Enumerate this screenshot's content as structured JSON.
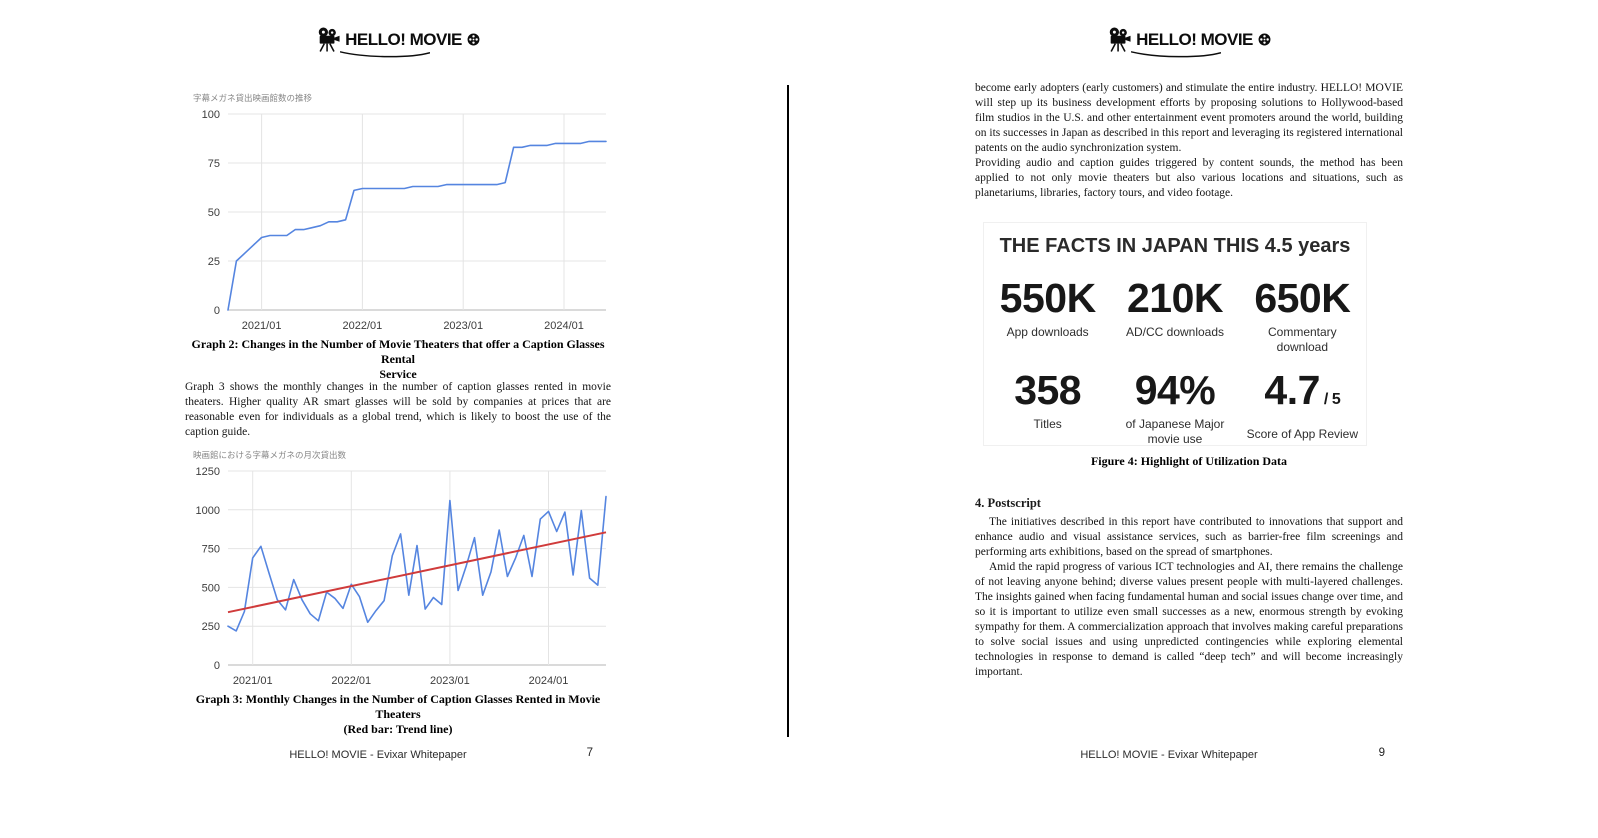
{
  "logo": {
    "text": "HELLO! MOVIE"
  },
  "left_page": {
    "graph2_caption": {
      "line1": "Graph 2: Changes in the Number of Movie Theaters that offer a Caption Glasses Rental",
      "line2": "Service"
    },
    "body_paragraph": "Graph 3 shows the monthly changes in the number of caption glasses rented in movie theaters. Higher quality AR smart glasses will be sold by companies at prices that are reasonable even for individuals as a global trend, which is likely to boost the use of the caption guide.",
    "graph3_caption": {
      "line1": "Graph 3: Monthly Changes in the Number of Caption Glasses Rented in Movie Theaters",
      "line2": "(Red bar: Trend line)"
    },
    "footer": "HELLO! MOVIE - Evixar Whitepaper",
    "page_number": "7"
  },
  "right_page": {
    "paragraph1": "become early adopters (early customers) and stimulate the entire industry. HELLO! MOVIE will step up its business development efforts by proposing solutions to Hollywood-based film studios in the U.S. and other entertainment event promoters around the world, building on its successes in Japan as described in this report and leveraging its registered international patents on the audio synchronization system.",
    "paragraph2": "Providing audio and caption guides triggered by content sounds, the method has been applied to not only movie theaters but also various locations and situations, such as planetariums, libraries, factory tours, and video footage.",
    "facts": {
      "title": "THE FACTS IN JAPAN THIS 4.5 years",
      "stats": [
        {
          "value": "550K",
          "label": "App downloads"
        },
        {
          "value": "210K",
          "label": "AD/CC downloads"
        },
        {
          "value": "650K",
          "label": "Commentary\ndownload"
        },
        {
          "value": "358",
          "label": "Titles"
        },
        {
          "value": "94%",
          "label": "of Japanese Major\nmovie use"
        },
        {
          "value": "4.7",
          "suffix": "/ 5",
          "label": "Score of App Review"
        }
      ]
    },
    "figure_caption": "Figure 4: Highlight of Utilization Data",
    "postscript": {
      "heading": "4. Postscript",
      "paragraph1": "The initiatives described in this report have contributed to innovations that support and enhance audio and visual assistance services, such as barrier-free film screenings and performing arts exhibitions, based on the spread of smartphones.",
      "paragraph2": "Amid the rapid progress of various ICT technologies and AI, there remains the challenge of not leaving anyone behind; diverse values present people with multi-layered challenges. The insights gained when facing fundamental human and social issues change over time, and so it is important to utilize even small successes as a new, enormous strength by evoking sympathy for them. A commercialization approach that involves making careful preparations to solve social issues and using unpredicted contingencies while exploring elemental technologies in response to demand is called “deep tech” and will become increasingly important."
    },
    "footer": "HELLO! MOVIE - Evixar Whitepaper",
    "page_number": "9"
  },
  "chart_data": [
    {
      "type": "line",
      "title": "字幕メガネ貸出映画館数の推移",
      "start_month": "2020/09",
      "x_tick_labels": [
        "2021/01",
        "2022/01",
        "2023/01",
        "2024/01"
      ],
      "y_ticks": [
        0,
        25,
        50,
        75,
        100
      ],
      "ylim": [
        0,
        100
      ],
      "grid": true,
      "legend": "none",
      "series": [
        {
          "name": "theaters-offering-caption-glasses",
          "color": "#5585e0",
          "values": [
            0,
            25,
            29,
            33,
            37,
            38,
            38,
            38,
            41,
            41,
            42,
            43,
            45,
            45,
            46,
            61,
            62,
            62,
            62,
            62,
            62,
            62,
            63,
            63,
            63,
            63,
            64,
            64,
            64,
            64,
            64,
            64,
            64,
            65,
            83,
            83,
            84,
            84,
            84,
            85,
            85,
            85,
            85,
            86,
            86,
            86
          ]
        }
      ]
    },
    {
      "type": "line",
      "title": "映画館における字幕メガネの月次貸出数",
      "start_month": "2020/10",
      "x_tick_labels": [
        "2021/01",
        "2022/01",
        "2023/01",
        "2024/01"
      ],
      "y_ticks": [
        0,
        250,
        500,
        750,
        1000,
        1250
      ],
      "ylim": [
        0,
        1250
      ],
      "grid": true,
      "legend": "none",
      "series": [
        {
          "name": "monthly-caption-glasses-rentals",
          "color": "#5585e0",
          "values": [
            250,
            220,
            345,
            690,
            765,
            590,
            420,
            355,
            550,
            420,
            330,
            285,
            470,
            430,
            365,
            520,
            440,
            275,
            350,
            415,
            705,
            845,
            450,
            770,
            360,
            435,
            390,
            1060,
            480,
            640,
            820,
            450,
            600,
            870,
            570,
            690,
            835,
            570,
            940,
            990,
            860,
            985,
            580,
            995,
            560,
            515,
            1085
          ]
        }
      ],
      "trend": {
        "name": "trend-line",
        "color": "#d03b3b",
        "start": 340,
        "end": 855
      }
    }
  ]
}
